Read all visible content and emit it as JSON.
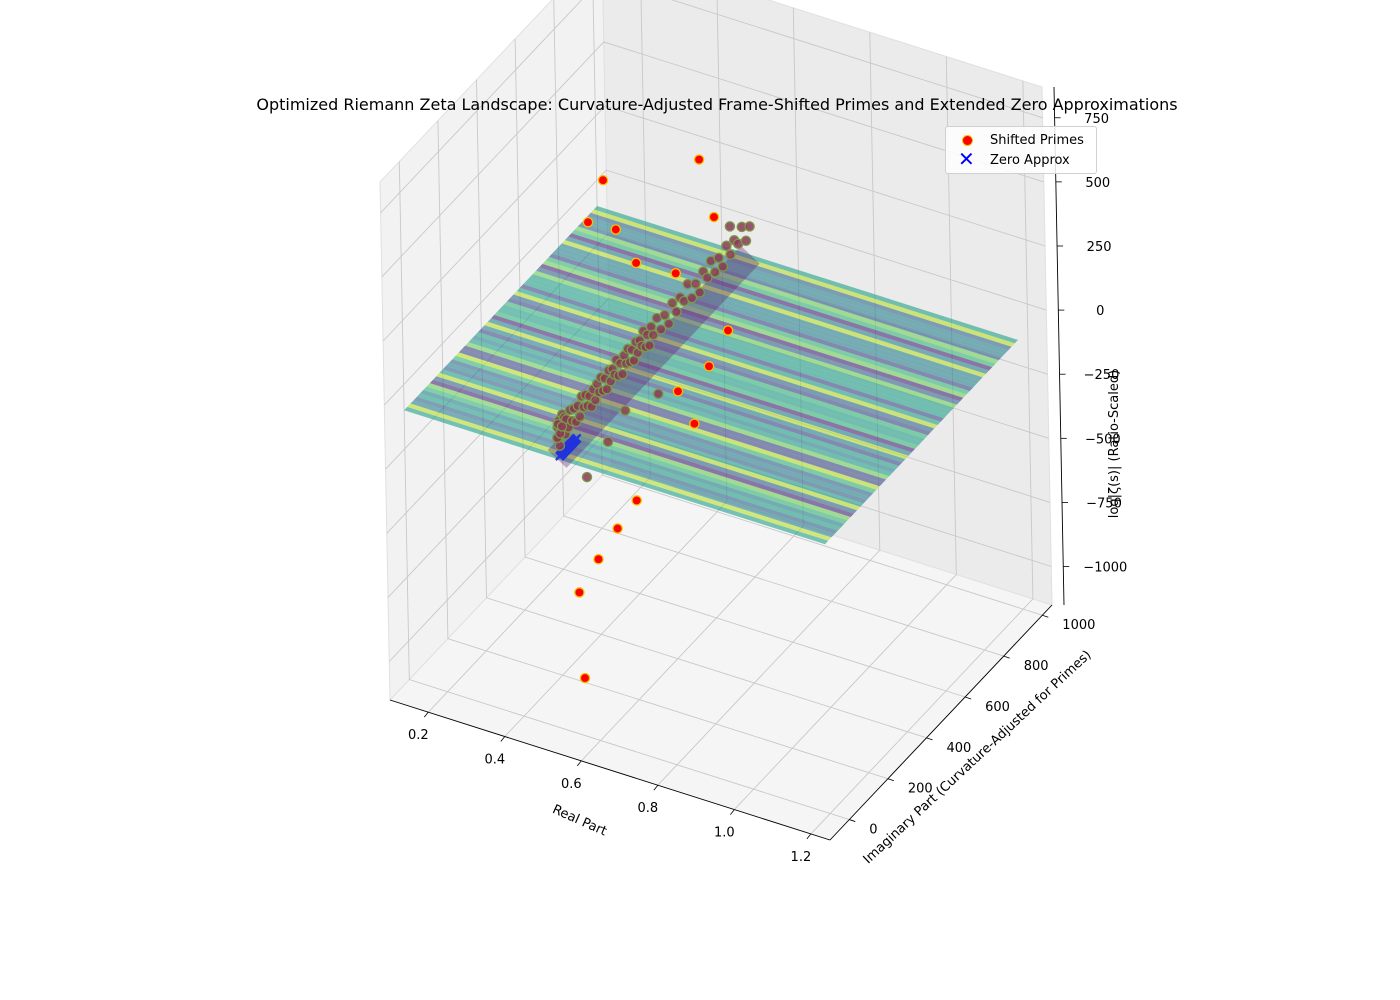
{
  "chart_data": {
    "type": "scatter3d_surface",
    "title": "Optimized Riemann Zeta Landscape: Curvature-Adjusted Frame-Shifted Primes and Extended Zero Approximations",
    "xlabel": "Real Part",
    "ylabel": "Imaginary Part (Curvature-Adjusted for Primes)",
    "zlabel": "log|ζ(s)| (Ratio-Scaled)",
    "xlim": [
      0.1,
      1.25
    ],
    "ylim": [
      -100,
      1050
    ],
    "zlim": [
      -1150,
      870
    ],
    "x_ticks": [
      "0.2",
      "0.4",
      "0.6",
      "0.8",
      "1.0",
      "1.2"
    ],
    "y_ticks": [
      "0",
      "200",
      "400",
      "600",
      "800",
      "1000"
    ],
    "z_ticks": [
      "750",
      "500",
      "250",
      "0",
      "−250",
      "−500",
      "−750",
      "−1000"
    ],
    "legend": [
      {
        "label": "Shifted Primes",
        "marker": "circle",
        "color": "#ff0000",
        "edge": "#f2c200"
      },
      {
        "label": "Zero Approx",
        "marker": "x",
        "color": "#0000ff"
      }
    ],
    "legend_position": "upper-right",
    "surface": {
      "colormap": "viridis",
      "alpha": 0.6,
      "x_range": [
        0.1,
        1.2
      ],
      "y_range": [
        0,
        1000
      ],
      "z_level": -100
    },
    "series": [
      {
        "name": "Shifted Primes",
        "points": [
          [
            0.5,
            5,
            20
          ],
          [
            0.5,
            8,
            -30
          ],
          [
            0.5,
            12,
            40
          ],
          [
            0.5,
            15,
            -60
          ],
          [
            0.5,
            20,
            10
          ],
          [
            0.5,
            25,
            -20
          ],
          [
            0.5,
            30,
            50
          ],
          [
            0.5,
            35,
            -10
          ],
          [
            0.5,
            40,
            30
          ],
          [
            0.5,
            45,
            -40
          ],
          [
            0.5,
            50,
            15
          ],
          [
            0.5,
            60,
            -25
          ],
          [
            0.5,
            70,
            35
          ],
          [
            0.5,
            80,
            -15
          ],
          [
            0.5,
            90,
            25
          ],
          [
            0.5,
            100,
            -35
          ],
          [
            0.5,
            110,
            20
          ],
          [
            0.5,
            120,
            -30
          ],
          [
            0.5,
            130,
            40
          ],
          [
            0.5,
            140,
            -10
          ],
          [
            0.5,
            150,
            30
          ],
          [
            0.5,
            160,
            -20
          ],
          [
            0.5,
            170,
            10
          ],
          [
            0.5,
            180,
            -40
          ],
          [
            0.5,
            190,
            20
          ],
          [
            0.5,
            200,
            -30
          ],
          [
            0.5,
            210,
            25
          ],
          [
            0.5,
            220,
            -15
          ],
          [
            0.5,
            230,
            35
          ],
          [
            0.5,
            240,
            -25
          ],
          [
            0.5,
            250,
            15
          ],
          [
            0.5,
            260,
            -35
          ],
          [
            0.5,
            270,
            30
          ],
          [
            0.5,
            280,
            -20
          ],
          [
            0.5,
            290,
            20
          ],
          [
            0.5,
            300,
            -10
          ],
          [
            0.5,
            310,
            40
          ],
          [
            0.5,
            320,
            -30
          ],
          [
            0.5,
            330,
            10
          ],
          [
            0.5,
            340,
            -40
          ],
          [
            0.5,
            350,
            25
          ],
          [
            0.5,
            360,
            -15
          ],
          [
            0.5,
            370,
            35
          ],
          [
            0.5,
            380,
            -25
          ],
          [
            0.5,
            390,
            15
          ],
          [
            0.5,
            400,
            -35
          ],
          [
            0.5,
            410,
            30
          ],
          [
            0.5,
            420,
            -20
          ],
          [
            0.5,
            430,
            20
          ],
          [
            0.5,
            440,
            -10
          ],
          [
            0.5,
            450,
            40
          ],
          [
            0.5,
            460,
            -30
          ],
          [
            0.5,
            470,
            10
          ],
          [
            0.5,
            480,
            -40
          ],
          [
            0.5,
            490,
            25
          ],
          [
            0.5,
            500,
            -15
          ],
          [
            0.5,
            520,
            35
          ],
          [
            0.5,
            540,
            -25
          ],
          [
            0.5,
            560,
            15
          ],
          [
            0.5,
            580,
            -35
          ],
          [
            0.5,
            600,
            30
          ],
          [
            0.5,
            620,
            -20
          ],
          [
            0.5,
            640,
            20
          ],
          [
            0.5,
            660,
            -10
          ],
          [
            0.5,
            680,
            40
          ],
          [
            0.5,
            700,
            -30
          ],
          [
            0.5,
            720,
            10
          ],
          [
            0.5,
            740,
            -40
          ],
          [
            0.5,
            760,
            25
          ],
          [
            0.5,
            780,
            -15
          ],
          [
            0.5,
            800,
            35
          ],
          [
            0.5,
            820,
            -25
          ],
          [
            0.5,
            840,
            15
          ],
          [
            0.5,
            860,
            -35
          ],
          [
            0.5,
            880,
            30
          ],
          [
            0.5,
            900,
            -20
          ],
          [
            0.5,
            920,
            20
          ],
          [
            0.5,
            940,
            -10
          ],
          [
            0.5,
            960,
            40
          ],
          [
            0.5,
            980,
            -30
          ],
          [
            0.5,
            1000,
            10
          ],
          [
            0.5,
            3,
            -20
          ],
          [
            0.5,
            7,
            30
          ],
          [
            0.5,
            18,
            -15
          ],
          [
            0.5,
            28,
            5
          ],
          [
            0.5,
            180,
            680
          ],
          [
            0.5,
            260,
            780
          ],
          [
            0.5,
            320,
            540
          ],
          [
            0.5,
            420,
            330
          ],
          [
            0.5,
            750,
            470
          ],
          [
            0.5,
            620,
            130
          ],
          [
            0.5,
            820,
            190
          ],
          [
            0.5,
            900,
            90
          ],
          [
            0.5,
            150,
            -290
          ],
          [
            0.5,
            260,
            -240
          ],
          [
            0.5,
            350,
            -190
          ],
          [
            0.5,
            520,
            -260
          ],
          [
            0.5,
            620,
            -330
          ],
          [
            0.5,
            780,
            -360
          ],
          [
            0.5,
            880,
            -300
          ],
          [
            0.5,
            100,
            -700
          ],
          [
            0.5,
            200,
            -650
          ],
          [
            0.5,
            300,
            -610
          ],
          [
            0.5,
            400,
            -580
          ],
          [
            0.5,
            120,
            -1050
          ],
          [
            0.5,
            700,
            -520
          ]
        ]
      },
      {
        "name": "Zero Approx",
        "points": [
          [
            0.5,
            14,
            -100
          ],
          [
            0.5,
            21,
            -100
          ],
          [
            0.5,
            25,
            -100
          ],
          [
            0.5,
            30,
            -100
          ],
          [
            0.5,
            33,
            -100
          ],
          [
            0.5,
            38,
            -100
          ],
          [
            0.5,
            41,
            -100
          ],
          [
            0.5,
            43,
            -100
          ],
          [
            0.5,
            48,
            -100
          ],
          [
            0.5,
            50,
            -100
          ],
          [
            0.5,
            53,
            -100
          ],
          [
            0.5,
            56,
            -100
          ],
          [
            0.5,
            59,
            -100
          ],
          [
            0.5,
            61,
            -100
          ],
          [
            0.5,
            65,
            -100
          ],
          [
            0.5,
            67,
            -100
          ],
          [
            0.5,
            70,
            -100
          ],
          [
            0.5,
            72,
            -100
          ],
          [
            0.5,
            75,
            -100
          ],
          [
            0.5,
            77,
            -100
          ],
          [
            0.5,
            79,
            -100
          ],
          [
            0.5,
            82,
            -100
          ],
          [
            0.5,
            84,
            -100
          ],
          [
            0.5,
            87,
            -100
          ],
          [
            0.5,
            88,
            -100
          ],
          [
            0.5,
            92,
            -100
          ],
          [
            0.5,
            94,
            -100
          ],
          [
            0.5,
            95,
            -100
          ],
          [
            0.5,
            98,
            -100
          ],
          [
            0.5,
            101,
            -100
          ]
        ]
      }
    ]
  }
}
